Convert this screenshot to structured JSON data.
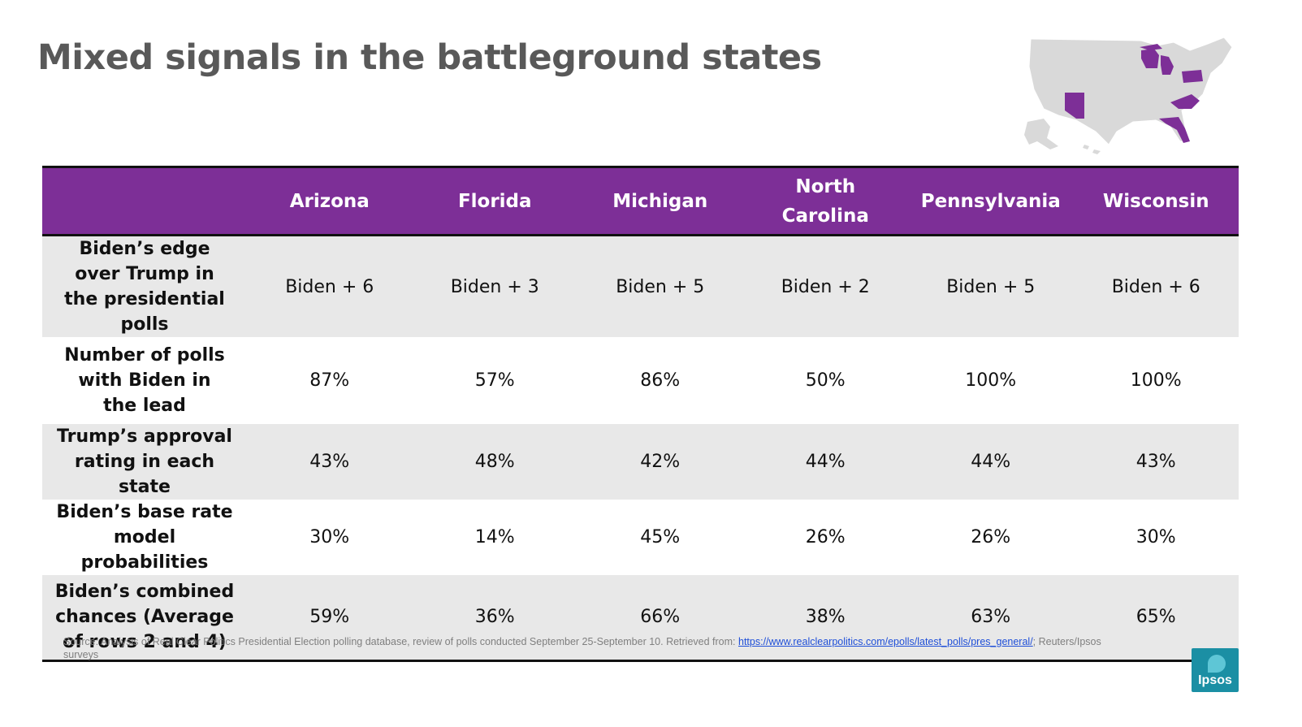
{
  "title": "Mixed signals in the battleground states",
  "map": {
    "highlight_color": "#7d2f97",
    "base_color": "#d9d9d9",
    "highlighted_states": [
      "Arizona",
      "Florida",
      "Michigan",
      "North Carolina",
      "Pennsylvania",
      "Wisconsin"
    ]
  },
  "chart_data": {
    "type": "table",
    "columns": [
      "",
      "Arizona",
      "Florida",
      "Michigan",
      "North Carolina",
      "Pennsylvania",
      "Wisconsin"
    ],
    "rows": [
      {
        "label": "Biden’s edge over Trump in the presidential polls",
        "values": [
          "Biden + 6",
          "Biden + 3",
          "Biden + 5",
          "Biden + 2",
          "Biden + 5",
          "Biden + 6"
        ]
      },
      {
        "label": "Number of polls with Biden in the lead",
        "values": [
          "87%",
          "57%",
          "86%",
          "50%",
          "100%",
          "100%"
        ]
      },
      {
        "label": "Trump’s approval rating in each state",
        "values": [
          "43%",
          "48%",
          "42%",
          "44%",
          "44%",
          "43%"
        ]
      },
      {
        "label": "Biden’s base rate model probabilities",
        "values": [
          "30%",
          "14%",
          "45%",
          "26%",
          "26%",
          "30%"
        ]
      },
      {
        "label": "Biden’s combined chances (Average of rows 2 and 4)",
        "values": [
          "59%",
          "36%",
          "66%",
          "38%",
          "63%",
          "65%"
        ]
      }
    ],
    "header_color": "#7d2f97",
    "stripe_color": "#e8e8e8"
  },
  "source": {
    "text": "Source: Analysis of Real Clear Politics Presidential Election polling database, review of polls conducted September 25-September 10. Retrieved from: ",
    "link": "https://www.realclearpolitics.com/epolls/latest_polls/pres_general/",
    "after": "; Reuters/Ipsos surveys"
  },
  "logo": {
    "text": "Ipsos",
    "color": "#1b8fa4"
  }
}
